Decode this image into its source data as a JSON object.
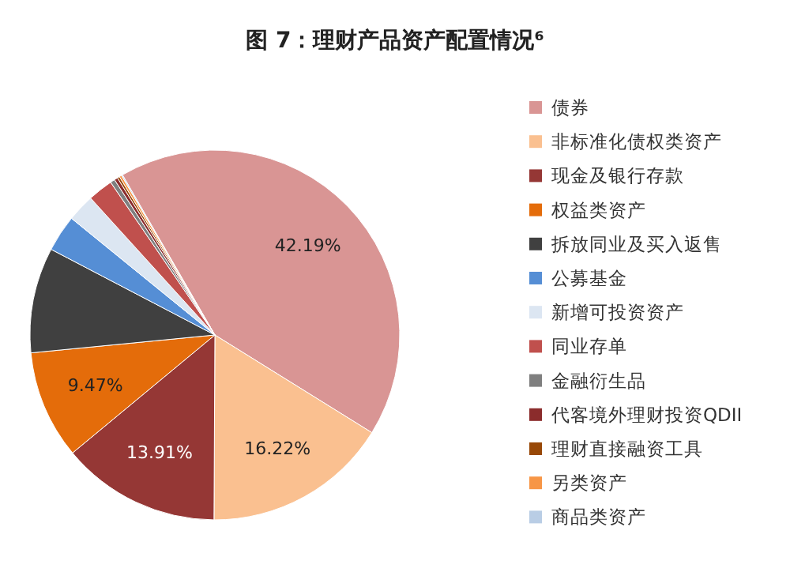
{
  "chart_data": {
    "type": "pie",
    "title": "图 7：理财产品资产配置情况⁶",
    "categories": [
      "债券",
      "非标准化债权类资产",
      "现金及银行存款",
      "权益类资产",
      "拆放同业及买入返售",
      "公募基金",
      "新增可投资资产",
      "同业存单",
      "金融衍生品",
      "代客境外理财投资QDII",
      "理财直接融资工具",
      "另类资产",
      "商品类资产"
    ],
    "values": [
      42.19,
      16.22,
      13.91,
      9.47,
      9.21,
      3.2,
      2.4,
      2.2,
      0.4,
      0.3,
      0.2,
      0.2,
      0.1
    ],
    "value_labels": [
      "42.19%",
      "16.22%",
      "13.91%",
      "9.47%",
      null,
      null,
      null,
      null,
      null,
      null,
      null,
      null,
      null
    ],
    "colors": [
      "#d99594",
      "#fac090",
      "#953735",
      "#e46c0a",
      "#404040",
      "#558ed5",
      "#dce6f2",
      "#c0504d",
      "#7f7f7f",
      "#8b2c2c",
      "#984807",
      "#f79646",
      "#b9cde5"
    ],
    "legend": "right"
  }
}
